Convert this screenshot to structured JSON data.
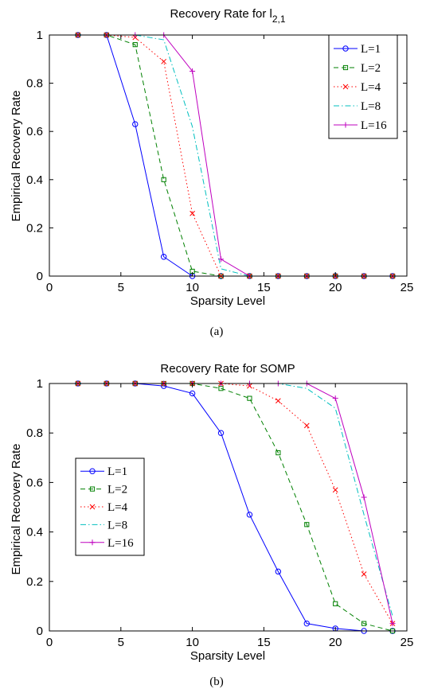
{
  "chart_data": [
    {
      "type": "line",
      "title_main": "Recovery Rate for l",
      "title_sub": "2,1",
      "xlabel": "Sparsity Level",
      "ylabel": "Empirical Recovery Rate",
      "xlim": [
        0,
        25
      ],
      "ylim": [
        0,
        1
      ],
      "xticks": [
        0,
        5,
        10,
        15,
        20,
        25
      ],
      "yticks": [
        0,
        0.2,
        0.4,
        0.6,
        0.8,
        1
      ],
      "legend_position": "top-right",
      "caption": "(a)",
      "x": [
        2,
        4,
        6,
        8,
        10,
        12,
        14,
        16,
        18,
        20,
        22,
        24
      ],
      "series": [
        {
          "name": "L=1",
          "color": "#0000ff",
          "dash": "",
          "marker": "circle",
          "values": [
            1,
            1,
            0.63,
            0.08,
            0,
            0,
            0,
            0,
            0,
            0,
            0,
            0
          ]
        },
        {
          "name": "L=2",
          "color": "#008000",
          "dash": "6,4",
          "marker": "square",
          "values": [
            1,
            1,
            0.96,
            0.4,
            0.02,
            0,
            0,
            0,
            0,
            0,
            0,
            0
          ]
        },
        {
          "name": "L=4",
          "color": "#ff0000",
          "dash": "1.5,3",
          "marker": "x",
          "values": [
            1,
            1,
            0.99,
            0.89,
            0.26,
            0,
            0,
            0,
            0,
            0,
            0,
            0
          ]
        },
        {
          "name": "L=8",
          "color": "#00bfbf",
          "dash": "7,3,1.5,3",
          "marker": "none",
          "values": [
            1,
            1,
            1,
            0.98,
            0.62,
            0.03,
            0,
            0,
            0,
            0,
            0,
            0
          ]
        },
        {
          "name": "L=16",
          "color": "#bf00bf",
          "dash": "",
          "marker": "plus",
          "values": [
            1,
            1,
            1,
            1,
            0.85,
            0.07,
            0,
            0,
            0,
            0,
            0,
            0
          ]
        }
      ]
    },
    {
      "type": "line",
      "title_main": "Recovery Rate for SOMP",
      "title_sub": "",
      "xlabel": "Sparsity Level",
      "ylabel": "Empirical Recovery Rate",
      "xlim": [
        0,
        25
      ],
      "ylim": [
        0,
        1
      ],
      "xticks": [
        0,
        5,
        10,
        15,
        20,
        25
      ],
      "yticks": [
        0,
        0.2,
        0.4,
        0.6,
        0.8,
        1
      ],
      "legend_position": "middle-left",
      "caption": "(b)",
      "x": [
        2,
        4,
        6,
        8,
        10,
        12,
        14,
        16,
        18,
        20,
        22,
        24
      ],
      "series": [
        {
          "name": "L=1",
          "color": "#0000ff",
          "dash": "",
          "marker": "circle",
          "values": [
            1,
            1,
            1,
            0.99,
            0.96,
            0.8,
            0.47,
            0.24,
            0.03,
            0.01,
            0,
            0
          ]
        },
        {
          "name": "L=2",
          "color": "#008000",
          "dash": "6,4",
          "marker": "square",
          "values": [
            1,
            1,
            1,
            1,
            1,
            0.98,
            0.94,
            0.72,
            0.43,
            0.11,
            0.03,
            0
          ]
        },
        {
          "name": "L=4",
          "color": "#ff0000",
          "dash": "1.5,3",
          "marker": "x",
          "values": [
            1,
            1,
            1,
            1,
            1,
            1,
            0.99,
            0.93,
            0.83,
            0.57,
            0.23,
            0.03
          ]
        },
        {
          "name": "L=8",
          "color": "#00bfbf",
          "dash": "7,3,1.5,3",
          "marker": "none",
          "values": [
            1,
            1,
            1,
            1,
            1,
            1,
            1,
            1,
            0.98,
            0.9,
            0.47,
            0.06
          ]
        },
        {
          "name": "L=16",
          "color": "#bf00bf",
          "dash": "",
          "marker": "plus",
          "values": [
            1,
            1,
            1,
            1,
            1,
            1,
            1,
            1,
            1,
            0.94,
            0.54,
            0.03
          ]
        }
      ]
    }
  ]
}
